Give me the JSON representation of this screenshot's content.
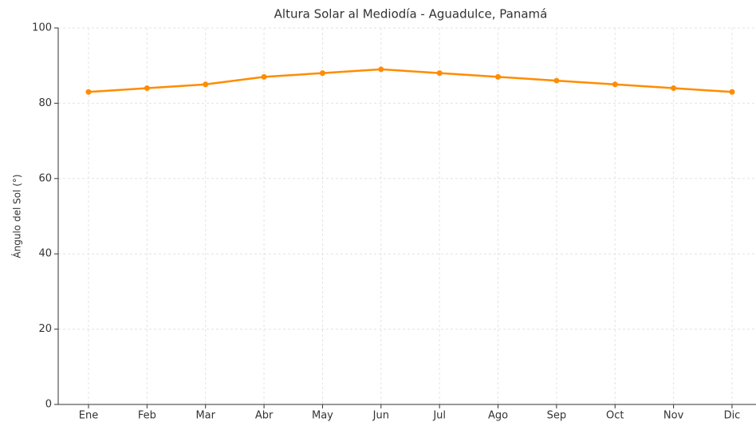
{
  "chart_data": {
    "type": "line",
    "title": "Altura Solar al Mediodía - Aguadulce, Panamá",
    "y_label": "Ángulo del Sol (°)",
    "categories": [
      "Ene",
      "Feb",
      "Mar",
      "Abr",
      "May",
      "Jun",
      "Jul",
      "Ago",
      "Sep",
      "Oct",
      "Nov",
      "Dic"
    ],
    "series": [
      {
        "color": "#ff8c00",
        "values": [
          83,
          84,
          85,
          87,
          88,
          89,
          88,
          87,
          86,
          85,
          84,
          83
        ]
      }
    ],
    "ylim": [
      0,
      100
    ],
    "yticks": [
      0,
      20,
      40,
      60,
      80,
      100
    ],
    "grid": true
  }
}
